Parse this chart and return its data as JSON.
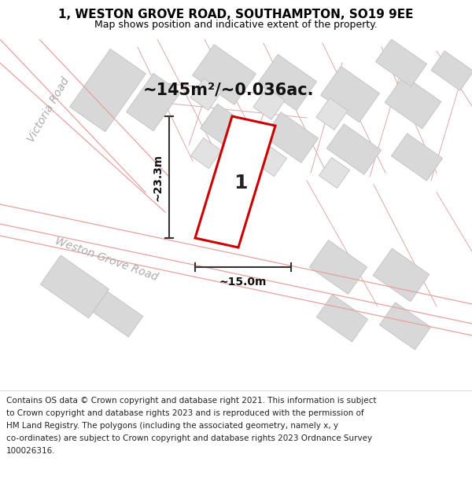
{
  "title": "1, WESTON GROVE ROAD, SOUTHAMPTON, SO19 9EE",
  "subtitle": "Map shows position and indicative extent of the property.",
  "footer_lines": [
    "Contains OS data © Crown copyright and database right 2021. This information is subject",
    "to Crown copyright and database rights 2023 and is reproduced with the permission of",
    "HM Land Registry. The polygons (including the associated geometry, namely x, y",
    "co-ordinates) are subject to Crown copyright and database rights 2023 Ordnance Survey",
    "100026316."
  ],
  "bg_color": "#ffffff",
  "map_bg": "#f2f2f2",
  "road_surface": "#ffffff",
  "building_fill": "#d8d8d8",
  "building_edge": "#c5c5c5",
  "road_line_color": "#e8a0a0",
  "road_label_1": "Victoria Road",
  "road_label_2": "Weston Grove Road",
  "area_label": "~145m²/~0.036ac.",
  "width_label": "~15.0m",
  "height_label": "~23.3m",
  "plot_number": "1",
  "plot_edge_color": "#cc0000",
  "plot_fill": "#ffffff",
  "dim_color": "#333333",
  "road_label_color": "#aaaaaa",
  "title_fontsize": 11,
  "subtitle_fontsize": 9,
  "footer_fontsize": 7.5,
  "area_fontsize": 15,
  "dim_fontsize": 10,
  "plot_num_fontsize": 18,
  "road_label_fontsize": 10
}
